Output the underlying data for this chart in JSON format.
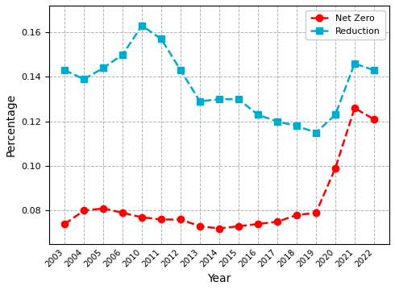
{
  "x_labels": [
    "2003",
    "2004",
    "2005",
    "2006",
    "2010",
    "2011",
    "2012",
    "2013",
    "2014",
    "2015",
    "2016",
    "2017",
    "2018",
    "2019",
    "2020",
    "2021",
    "2022"
  ],
  "net_zero_values": [
    0.074,
    0.08,
    0.081,
    0.079,
    0.077,
    0.076,
    0.076,
    0.073,
    0.072,
    0.073,
    0.074,
    0.075,
    0.078,
    0.079,
    0.099,
    0.126,
    0.121
  ],
  "net_zero_mask": [
    true,
    true,
    true,
    true,
    true,
    true,
    true,
    true,
    true,
    true,
    true,
    true,
    true,
    true,
    true,
    true,
    true
  ],
  "reduction_values": [
    0.143,
    0.139,
    0.144,
    0.15,
    0.163,
    0.157,
    0.143,
    0.129,
    0.13,
    0.13,
    0.123,
    0.12,
    0.118,
    0.115,
    0.123,
    0.146,
    0.143
  ],
  "reduction_mask": [
    true,
    true,
    true,
    true,
    true,
    true,
    true,
    true,
    true,
    true,
    true,
    true,
    true,
    true,
    true,
    true,
    true
  ],
  "net_zero_color": "#FF0000",
  "reduction_color": "#00AACC",
  "net_zero_marker": "o",
  "reduction_marker": "s",
  "net_zero_label": "Net Zero",
  "reduction_label": "Reduction",
  "xlabel": "Year",
  "ylabel": "Percentage",
  "ylim": [
    0.065,
    0.172
  ],
  "yticks": [
    0.08,
    0.1,
    0.12,
    0.14,
    0.16
  ],
  "background_color": "#FFFFFF",
  "grid_color": "#AAAAAA",
  "linestyle": "--",
  "linewidth": 1.8,
  "markersize": 6
}
